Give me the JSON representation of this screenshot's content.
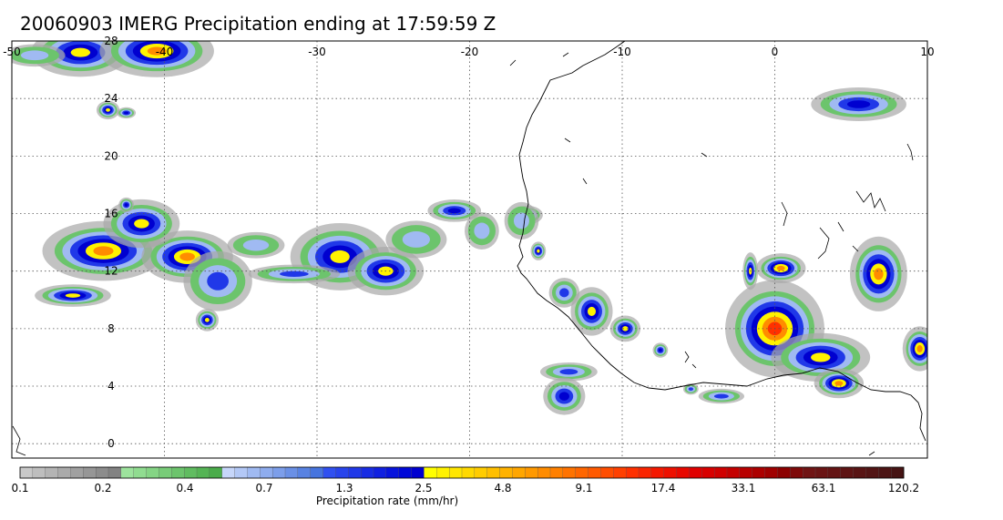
{
  "title": "20060903 IMERG Precipitation ending at 17:59:59 Z",
  "map": {
    "lon_range": [
      -50,
      10
    ],
    "lat_range": [
      -1,
      28
    ],
    "lon_ticks": [
      -50,
      -40,
      -30,
      -20,
      -10,
      0,
      10
    ],
    "lat_ticks": [
      0,
      4,
      8,
      12,
      16,
      20,
      24,
      28
    ],
    "lon_tick_labels": [
      "-50",
      "-40",
      "-30",
      "-20",
      "-10",
      "0",
      "10"
    ],
    "lat_tick_labels": [
      "0",
      "4",
      "8",
      "12",
      "16",
      "20",
      "24",
      "28"
    ],
    "gridlines": true,
    "grid_style": "dotted",
    "coastline_color": "#000000"
  },
  "colorbar": {
    "label": "Precipitation rate (mm/hr)",
    "tick_labels": [
      "0.1",
      "0.2",
      "0.4",
      "0.7",
      "1.3",
      "2.5",
      "4.8",
      "9.1",
      "17.4",
      "33.1",
      "63.1",
      "120.2"
    ],
    "colors": [
      "#c8c8c8",
      "#bebebe",
      "#b4b4b4",
      "#aaaaaa",
      "#a0a0a0",
      "#969696",
      "#8c8c8c",
      "#828282",
      "#9de39d",
      "#90dc90",
      "#84d484",
      "#78cc78",
      "#6cc46c",
      "#60bc60",
      "#55b455",
      "#4aac4a",
      "#c6d6fa",
      "#b3c8f6",
      "#a0baf2",
      "#8eacee",
      "#7c9eea",
      "#6a90e6",
      "#5882e2",
      "#4674de",
      "#3050f0",
      "#2844ec",
      "#2038e8",
      "#182ce4",
      "#1020e0",
      "#0814dc",
      "#0008d8",
      "#0000d0",
      "#ffff00",
      "#fff200",
      "#ffe600",
      "#ffd900",
      "#ffcc00",
      "#ffbf00",
      "#ffb200",
      "#ffa600",
      "#ff9900",
      "#ff8c00",
      "#ff8000",
      "#ff7300",
      "#ff6600",
      "#ff5a00",
      "#ff4d00",
      "#ff4000",
      "#ff3000",
      "#fa2400",
      "#f41800",
      "#ee1000",
      "#e80800",
      "#e00000",
      "#d80000",
      "#d00000",
      "#c40000",
      "#b80000",
      "#ac0000",
      "#a00000",
      "#8c0000",
      "#7e0a0a",
      "#701414",
      "#6a1414",
      "#641414",
      "#5e1414",
      "#581414",
      "#521414",
      "#4c1414",
      "#461414"
    ]
  },
  "precip_cells": [
    {
      "lon": -45.5,
      "lat": 27.2,
      "rx": 2.6,
      "ry": 1.3,
      "peak": 4
    },
    {
      "lon": -40.5,
      "lat": 27.3,
      "rx": 3.0,
      "ry": 1.4,
      "peak": 5
    },
    {
      "lon": -48.5,
      "lat": 27.0,
      "rx": 1.6,
      "ry": 0.6,
      "peak": 1
    },
    {
      "lon": -44.0,
      "lat": 13.4,
      "rx": 3.2,
      "ry": 1.6,
      "peak": 5
    },
    {
      "lon": -38.5,
      "lat": 13.0,
      "rx": 2.4,
      "ry": 1.4,
      "peak": 5
    },
    {
      "lon": -41.5,
      "lat": 15.3,
      "rx": 2.0,
      "ry": 1.3,
      "peak": 4
    },
    {
      "lon": -46.0,
      "lat": 10.3,
      "rx": 2.0,
      "ry": 0.6,
      "peak": 4
    },
    {
      "lon": -36.5,
      "lat": 11.3,
      "rx": 1.8,
      "ry": 1.6,
      "peak": 2
    },
    {
      "lon": -37.2,
      "lat": 8.6,
      "rx": 0.6,
      "ry": 0.6,
      "peak": 4
    },
    {
      "lon": -34.0,
      "lat": 13.8,
      "rx": 1.5,
      "ry": 0.7,
      "peak": 1
    },
    {
      "lon": -42.5,
      "lat": 16.6,
      "rx": 0.4,
      "ry": 0.4,
      "peak": 3
    },
    {
      "lon": -28.5,
      "lat": 13.0,
      "rx": 2.6,
      "ry": 1.8,
      "peak": 4
    },
    {
      "lon": -25.5,
      "lat": 12.0,
      "rx": 2.0,
      "ry": 1.3,
      "peak": 4
    },
    {
      "lon": -31.5,
      "lat": 11.8,
      "rx": 2.4,
      "ry": 0.5,
      "peak": 2
    },
    {
      "lon": -23.5,
      "lat": 14.2,
      "rx": 1.6,
      "ry": 1.0,
      "peak": 1
    },
    {
      "lon": -21.0,
      "lat": 16.2,
      "rx": 1.4,
      "ry": 0.6,
      "peak": 3
    },
    {
      "lon": -19.2,
      "lat": 14.8,
      "rx": 0.9,
      "ry": 1.0,
      "peak": 1
    },
    {
      "lon": -43.7,
      "lat": 23.2,
      "rx": 0.6,
      "ry": 0.5,
      "peak": 4
    },
    {
      "lon": -42.5,
      "lat": 23.0,
      "rx": 0.5,
      "ry": 0.3,
      "peak": 3
    },
    {
      "lon": -16.2,
      "lat": 15.9,
      "rx": 0.8,
      "ry": 0.5,
      "peak": 3
    },
    {
      "lon": -15.5,
      "lat": 13.4,
      "rx": 0.4,
      "ry": 0.5,
      "peak": 4
    },
    {
      "lon": -13.8,
      "lat": 10.5,
      "rx": 0.8,
      "ry": 0.8,
      "peak": 2
    },
    {
      "lon": -12.0,
      "lat": 9.2,
      "rx": 1.1,
      "ry": 1.3,
      "peak": 4
    },
    {
      "lon": -9.8,
      "lat": 8.0,
      "rx": 0.8,
      "ry": 0.7,
      "peak": 4
    },
    {
      "lon": -13.5,
      "lat": 5.0,
      "rx": 1.5,
      "ry": 0.5,
      "peak": 2
    },
    {
      "lon": -13.8,
      "lat": 3.3,
      "rx": 1.1,
      "ry": 1.0,
      "peak": 3
    },
    {
      "lon": 0.0,
      "lat": 8.0,
      "rx": 2.6,
      "ry": 2.6,
      "peak": 6
    },
    {
      "lon": 3.0,
      "lat": 6.0,
      "rx": 2.6,
      "ry": 1.3,
      "peak": 4
    },
    {
      "lon": 4.2,
      "lat": 4.2,
      "rx": 1.3,
      "ry": 0.8,
      "peak": 5
    },
    {
      "lon": 0.4,
      "lat": 12.2,
      "rx": 1.3,
      "ry": 0.8,
      "peak": 5
    },
    {
      "lon": -1.6,
      "lat": 12.0,
      "rx": 0.4,
      "ry": 1.0,
      "peak": 4
    },
    {
      "lon": 6.8,
      "lat": 11.8,
      "rx": 1.5,
      "ry": 2.0,
      "peak": 5
    },
    {
      "lon": 9.5,
      "lat": 6.6,
      "rx": 0.9,
      "ry": 1.2,
      "peak": 5
    },
    {
      "lon": 5.5,
      "lat": 23.6,
      "rx": 2.5,
      "ry": 0.9,
      "peak": 3
    },
    {
      "lon": -16.6,
      "lat": 15.5,
      "rx": 0.9,
      "ry": 1.0,
      "peak": 1
    },
    {
      "lon": -7.5,
      "lat": 6.5,
      "rx": 0.4,
      "ry": 0.4,
      "peak": 3
    },
    {
      "lon": -3.5,
      "lat": 3.3,
      "rx": 1.2,
      "ry": 0.4,
      "peak": 2
    },
    {
      "lon": -5.5,
      "lat": 3.8,
      "rx": 0.4,
      "ry": 0.3,
      "peak": 2
    }
  ]
}
